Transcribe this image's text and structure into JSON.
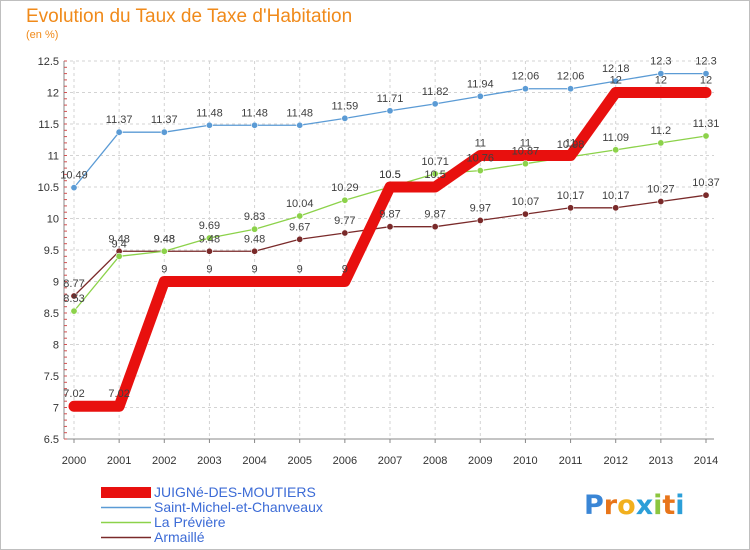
{
  "title": "Evolution du Taux de Taxe d'Habitation",
  "unit_label": "(en %)",
  "logo": {
    "text": "Proxiti",
    "letter_colors": [
      "#3a86d6",
      "#e8751a",
      "#f2b01e",
      "#2c9fd8",
      "#8cc63f",
      "#e8751a",
      "#2c9fd8"
    ]
  },
  "chart_data": {
    "type": "line",
    "title": "Evolution du Taux de Taxe d'Habitation",
    "ylabel": "(en %)",
    "xlabel": "",
    "x": [
      "2000",
      "2001",
      "2002",
      "2003",
      "2004",
      "2005",
      "2006",
      "2007",
      "2008",
      "2009",
      "2010",
      "2011",
      "2012",
      "2013",
      "2014"
    ],
    "ylim": [
      6.5,
      12.5
    ],
    "yticks": [
      6.5,
      7,
      7.5,
      8,
      8.5,
      9,
      9.5,
      10,
      10.5,
      11,
      11.5,
      12,
      12.5
    ],
    "ytick_labels": [
      "6.5",
      "7",
      "7.5",
      "8",
      "8.5",
      "9",
      "9.5",
      "10",
      "10.5",
      "11",
      "11.5",
      "12",
      "12.5"
    ],
    "grid": true,
    "legend_position": "bottom-left",
    "series": [
      {
        "name": "JUIGNé-DES-MOUTIERS",
        "color": "#e8100e",
        "values": [
          7.02,
          7.02,
          9,
          9,
          9,
          9,
          9,
          10.5,
          10.5,
          11,
          11,
          11,
          12,
          12,
          12
        ],
        "labels": [
          "7.02",
          "7.02",
          "9",
          "9",
          "9",
          "9",
          "9",
          "10.5",
          "10.5",
          "11",
          "11",
          "11",
          "12",
          "12",
          "12"
        ]
      },
      {
        "name": "Saint-Michel-et-Chanveaux",
        "color": "#5b9bd5",
        "values": [
          10.49,
          11.37,
          11.37,
          11.48,
          11.48,
          11.48,
          11.59,
          11.71,
          11.82,
          11.94,
          12.06,
          12.06,
          12.18,
          12.3,
          12.3
        ],
        "labels": [
          "10.49",
          "11.37",
          "11.37",
          "11.48",
          "11.48",
          "11.48",
          "11.59",
          "11.71",
          "11.82",
          "11.94",
          "12.06",
          "12.06",
          "12.18",
          "12.3",
          "12.3"
        ]
      },
      {
        "name": "La Prévière",
        "color": "#8cd24a",
        "values": [
          8.53,
          9.4,
          9.48,
          9.69,
          9.83,
          10.04,
          10.29,
          10.5,
          10.71,
          10.76,
          10.87,
          10.98,
          11.09,
          11.2,
          11.31
        ],
        "labels": [
          "8.53",
          "9.4",
          "9.48",
          "9.69",
          "9.83",
          "10.04",
          "10.29",
          "10.5",
          "10.71",
          "10.76",
          "10.87",
          "10.98",
          "11.09",
          "11.2",
          "11.31"
        ]
      },
      {
        "name": "Armaillé",
        "color": "#7a2a2a",
        "values": [
          8.77,
          9.48,
          9.48,
          9.48,
          9.48,
          9.67,
          9.77,
          9.87,
          9.87,
          9.97,
          10.07,
          10.17,
          10.17,
          10.27,
          10.37
        ],
        "labels": [
          "8.77",
          "9.48",
          "9.48",
          "9.48",
          "9.48",
          "9.67",
          "9.77",
          "9.87",
          "9.87",
          "9.97",
          "10.07",
          "10.17",
          "10.17",
          "10.27",
          "10.37"
        ]
      }
    ]
  }
}
